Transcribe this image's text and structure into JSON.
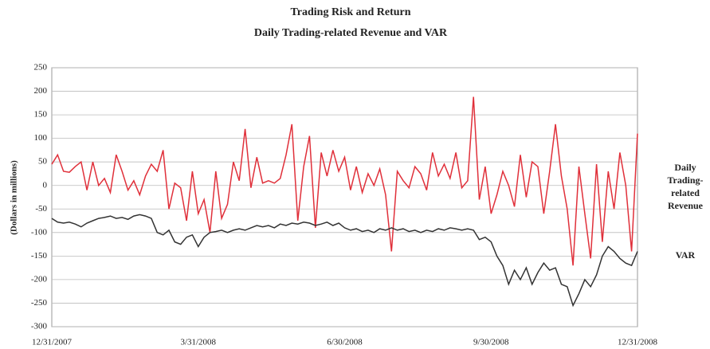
{
  "chart_data": {
    "type": "line",
    "title": "Trading Risk and Return",
    "subtitle": "Daily Trading-related Revenue and VAR",
    "y_label": "(Dollars in millions)",
    "categories": [
      "12/31/2007",
      null,
      null,
      null,
      null,
      null,
      null,
      null,
      null,
      null,
      null,
      null,
      null,
      null,
      null,
      null,
      null,
      null,
      null,
      null,
      null,
      null,
      null,
      null,
      null,
      "3/31/2008",
      null,
      null,
      null,
      null,
      null,
      null,
      null,
      null,
      null,
      null,
      null,
      null,
      null,
      null,
      null,
      null,
      null,
      null,
      null,
      null,
      null,
      null,
      null,
      null,
      "6/30/2008",
      null,
      null,
      null,
      null,
      null,
      null,
      null,
      null,
      null,
      null,
      null,
      null,
      null,
      null,
      null,
      null,
      null,
      null,
      null,
      null,
      null,
      null,
      null,
      null,
      "9/30/2008",
      null,
      null,
      null,
      null,
      null,
      null,
      null,
      null,
      null,
      null,
      null,
      null,
      null,
      null,
      null,
      null,
      null,
      null,
      null,
      null,
      null,
      null,
      null,
      null,
      "12/31/2008"
    ],
    "series": [
      {
        "name": "Daily Trading-related Revenue",
        "color": "#e0303a",
        "values": [
          45,
          65,
          30,
          28,
          40,
          50,
          -10,
          50,
          0,
          15,
          -15,
          65,
          30,
          -10,
          10,
          -20,
          20,
          45,
          30,
          75,
          -50,
          5,
          -5,
          -75,
          30,
          -60,
          -30,
          -100,
          30,
          -70,
          -40,
          50,
          10,
          120,
          -5,
          60,
          5,
          10,
          5,
          15,
          65,
          130,
          -75,
          40,
          105,
          -90,
          70,
          20,
          75,
          30,
          60,
          -10,
          40,
          -15,
          25,
          0,
          35,
          -20,
          -140,
          30,
          10,
          -5,
          40,
          25,
          -10,
          70,
          20,
          45,
          15,
          70,
          -5,
          10,
          188,
          -30,
          40,
          -60,
          -20,
          30,
          0,
          -45,
          65,
          -25,
          50,
          40,
          -60,
          30,
          130,
          20,
          -50,
          -170,
          40,
          -60,
          -155,
          45,
          -120,
          30,
          -50,
          70,
          0,
          -140,
          110
        ]
      },
      {
        "name": "VAR",
        "color": "#333333",
        "values": [
          -70,
          -78,
          -80,
          -78,
          -82,
          -88,
          -80,
          -75,
          -70,
          -68,
          -65,
          -70,
          -68,
          -72,
          -65,
          -62,
          -65,
          -70,
          -100,
          -105,
          -95,
          -120,
          -125,
          -110,
          -105,
          -130,
          -110,
          -100,
          -98,
          -95,
          -100,
          -95,
          -92,
          -95,
          -90,
          -85,
          -88,
          -85,
          -90,
          -82,
          -85,
          -80,
          -82,
          -78,
          -80,
          -85,
          -82,
          -78,
          -85,
          -80,
          -90,
          -95,
          -92,
          -98,
          -95,
          -100,
          -92,
          -95,
          -90,
          -95,
          -92,
          -98,
          -95,
          -100,
          -95,
          -98,
          -92,
          -95,
          -90,
          -92,
          -95,
          -92,
          -95,
          -115,
          -110,
          -120,
          -150,
          -170,
          -210,
          -180,
          -200,
          -175,
          -210,
          -185,
          -165,
          -180,
          -175,
          -210,
          -215,
          -255,
          -230,
          -200,
          -215,
          -190,
          -150,
          -130,
          -140,
          -155,
          -165,
          -170,
          -140
        ]
      }
    ],
    "ylim": [
      -300,
      250
    ],
    "yticks": [
      -300,
      -250,
      -200,
      -150,
      -100,
      -50,
      0,
      50,
      100,
      150,
      200,
      250
    ],
    "grid": true
  }
}
